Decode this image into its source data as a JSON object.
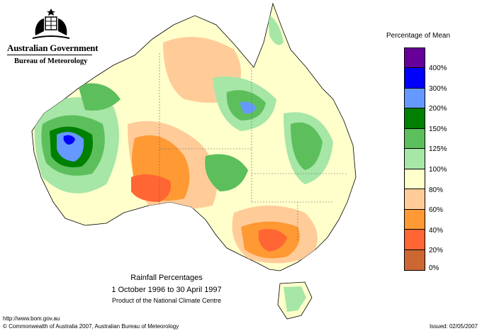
{
  "header": {
    "government": "Australian Government",
    "bureau": "Bureau of Meteorology"
  },
  "legend": {
    "title": "Percentage of Mean",
    "bands": [
      {
        "color": "#660099"
      },
      {
        "color": "#0000ff"
      },
      {
        "color": "#6699ff"
      },
      {
        "color": "#008000"
      },
      {
        "color": "#5cbf5c"
      },
      {
        "color": "#a6e6a6"
      },
      {
        "color": "#ffffcc"
      },
      {
        "color": "#ffcc99"
      },
      {
        "color": "#ff9933"
      },
      {
        "color": "#ff6633"
      },
      {
        "color": "#cc6633"
      }
    ],
    "labels": [
      "400%",
      "300%",
      "200%",
      "150%",
      "125%",
      "100%",
      "80%",
      "60%",
      "40%",
      "20%",
      "0%"
    ]
  },
  "caption": {
    "title": "Rainfall Percentages",
    "dates": "1 October 1996 to 30 April 1997",
    "product": "Product of the National Climate Centre"
  },
  "footer": {
    "url": "http://www.bom.gov.au",
    "copyright": "© Commonwealth of Australia 2007, Australian Bureau of Meteorology",
    "issued": "Issued: 02/05/2007"
  }
}
